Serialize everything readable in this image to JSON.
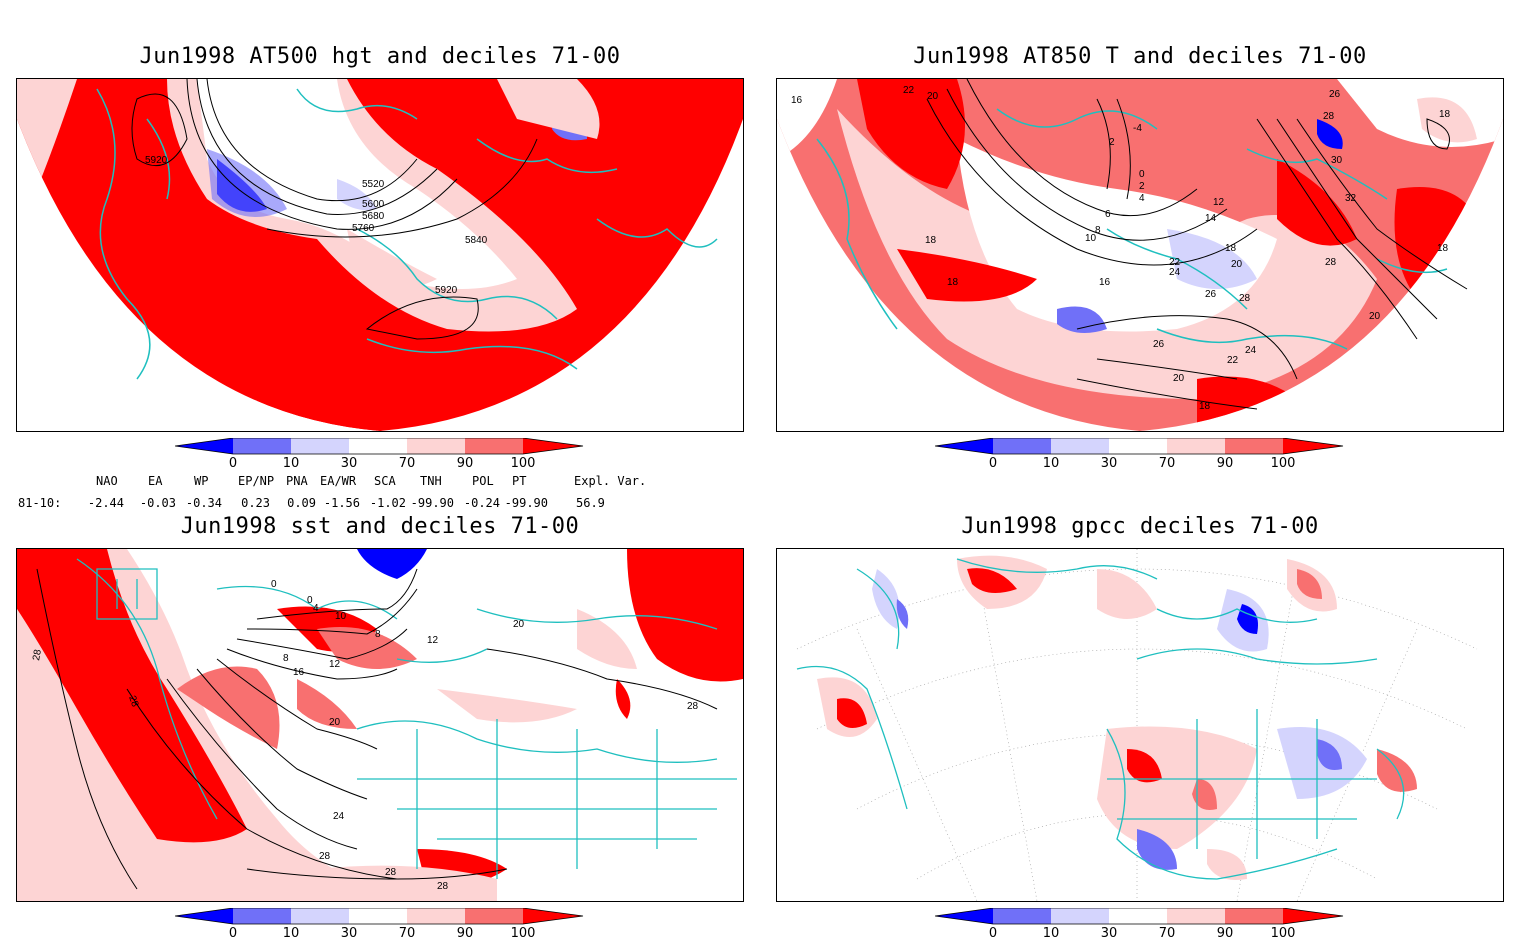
{
  "colors": {
    "coast": "#1fbfbf",
    "red_strong": "#ff0000",
    "red_mid": "#f87070",
    "red_light": "#fdd4d4",
    "blue_strong": "#0000ff",
    "blue_mid": "#7070f8",
    "blue_light": "#d4d4fd",
    "white": "#ffffff"
  },
  "panels": {
    "p1": {
      "title": "Jun1998 AT500 hgt and deciles 71-00",
      "contour_labels": [
        "5920",
        "5520",
        "5600",
        "5680",
        "5760",
        "5840",
        "5920"
      ]
    },
    "p2": {
      "title": "Jun1998 AT850 T and deciles 71-00",
      "contour_labels": [
        "16",
        "22",
        "20",
        "2",
        "-4",
        "0",
        "2",
        "4",
        "6",
        "8",
        "10",
        "12",
        "14",
        "18",
        "20",
        "22",
        "24",
        "26",
        "28",
        "26",
        "24",
        "22",
        "20",
        "18",
        "16",
        "18",
        "18",
        "20",
        "28",
        "32",
        "30",
        "28",
        "26",
        "18",
        "18"
      ]
    },
    "p3": {
      "title": "Jun1998 sst and deciles 71-00",
      "contour_labels": [
        "28",
        "28",
        "0",
        "0",
        "4",
        "8",
        "10",
        "12",
        "16",
        "8",
        "12",
        "20",
        "20",
        "24",
        "28",
        "28",
        "28",
        "28"
      ]
    },
    "p4": {
      "title": "Jun1998 gpcc deciles 71-00",
      "contour_labels": []
    }
  },
  "colorbar": {
    "labels": [
      "0",
      "10",
      "30",
      "70",
      "90",
      "100"
    ],
    "colors": [
      "#0000ff",
      "#7070f8",
      "#d4d4fd",
      "#ffffff",
      "#fdd4d4",
      "#f87070",
      "#ff0000"
    ]
  },
  "indices": {
    "headers": [
      "NAO",
      "EA",
      "WP",
      "EP/NP",
      "PNA",
      "EA/WR",
      "SCA",
      "TNH",
      "POL",
      "PT",
      "Expl. Var."
    ],
    "row_label": "81-10:",
    "values": [
      "-2.44",
      "-0.03",
      "-0.34",
      "0.23",
      "0.09",
      "-1.56",
      "-1.02",
      "-99.90",
      "-0.24",
      "-99.90",
      "56.9"
    ]
  }
}
